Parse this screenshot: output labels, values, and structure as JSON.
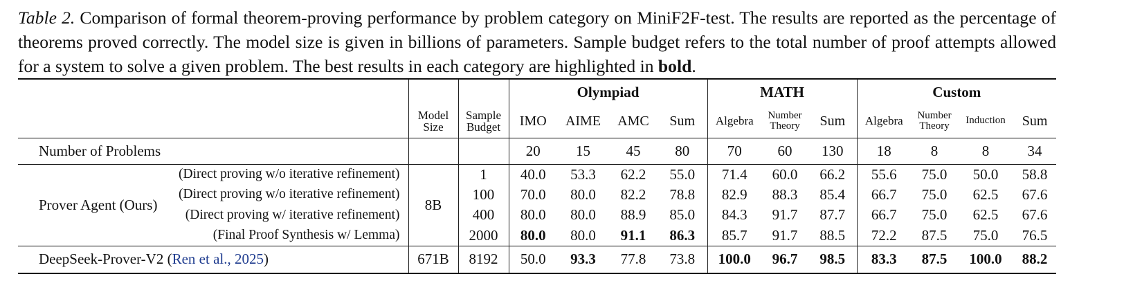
{
  "caption": {
    "label": "Table 2.",
    "text": " Comparison of formal theorem-proving performance by problem category on MiniF2F-test. The results are reported as the percentage of theorems proved correctly. The model size is given in billions of parameters. Sample budget refers to the total number of proof attempts allowed for a system to solve a given problem. The best results in each category are highlighted in ",
    "emphasis": "bold",
    "end": "."
  },
  "table": {
    "groups": [
      "Olympiad",
      "MATH",
      "Custom"
    ],
    "columns": [
      "Model Size",
      "Sample Budget",
      "IMO",
      "AIME",
      "AMC",
      "Sum",
      "Algebra",
      "Number Theory",
      "Sum",
      "Algebra",
      "Number Theory",
      "Induction",
      "Sum"
    ],
    "problems": {
      "label": "Number of Problems",
      "values": [
        "20",
        "15",
        "45",
        "80",
        "70",
        "60",
        "130",
        "18",
        "8",
        "8",
        "34"
      ]
    },
    "prover": {
      "name": "Prover Agent (Ours)",
      "size": "8B",
      "rows": [
        {
          "setting": "(Direct proving w/o iterative refinement)",
          "budget": "1",
          "scores": [
            "40.0",
            "53.3",
            "62.2",
            "55.0",
            "71.4",
            "60.0",
            "66.2",
            "55.6",
            "75.0",
            "50.0",
            "58.8"
          ],
          "bold": [
            false,
            false,
            false,
            false,
            false,
            false,
            false,
            false,
            false,
            false,
            false
          ]
        },
        {
          "setting": "(Direct proving w/o iterative refinement)",
          "budget": "100",
          "scores": [
            "70.0",
            "80.0",
            "82.2",
            "78.8",
            "82.9",
            "88.3",
            "85.4",
            "66.7",
            "75.0",
            "62.5",
            "67.6"
          ],
          "bold": [
            false,
            false,
            false,
            false,
            false,
            false,
            false,
            false,
            false,
            false,
            false
          ]
        },
        {
          "setting": "(Direct proving w/ iterative refinement)",
          "budget": "400",
          "scores": [
            "80.0",
            "80.0",
            "88.9",
            "85.0",
            "84.3",
            "91.7",
            "87.7",
            "66.7",
            "75.0",
            "62.5",
            "67.6"
          ],
          "bold": [
            false,
            false,
            false,
            false,
            false,
            false,
            false,
            false,
            false,
            false,
            false
          ]
        },
        {
          "setting": "(Final Proof Synthesis w/ Lemma)",
          "budget": "2000",
          "scores": [
            "80.0",
            "80.0",
            "91.1",
            "86.3",
            "85.7",
            "91.7",
            "88.5",
            "72.2",
            "87.5",
            "75.0",
            "76.5"
          ],
          "bold": [
            true,
            false,
            true,
            true,
            false,
            false,
            false,
            false,
            false,
            false,
            false
          ]
        }
      ]
    },
    "deepseek": {
      "name": "DeepSeek-Prover-V2 (",
      "citation": "Ren et al., 2025",
      "close": ")",
      "size": "671B",
      "budget": "8192",
      "scores": [
        "50.0",
        "93.3",
        "77.8",
        "73.8",
        "100.0",
        "96.7",
        "98.5",
        "83.3",
        "87.5",
        "100.0",
        "88.2"
      ],
      "bold": [
        false,
        true,
        false,
        false,
        true,
        true,
        true,
        true,
        true,
        true,
        true
      ]
    }
  }
}
